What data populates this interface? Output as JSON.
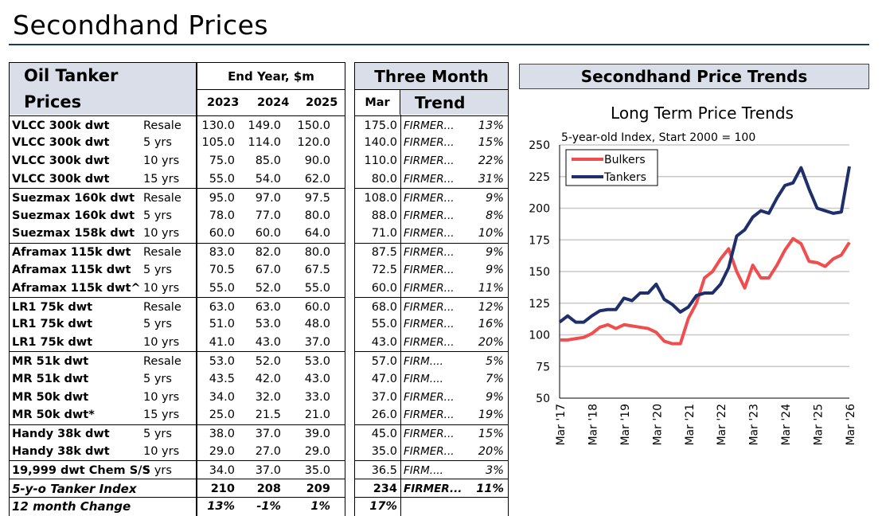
{
  "page_title": "Secondhand Prices",
  "table": {
    "header": {
      "col1_line1": "Oil Tanker",
      "col1_line2": "Prices",
      "end_year": "End Year, $m",
      "years": [
        "2023",
        "2024",
        "2025"
      ],
      "three_month": "Three Month",
      "mar": "Mar",
      "trend": "Trend"
    },
    "rows": [
      {
        "name": "VLCC 300k dwt",
        "age": "Resale",
        "y2023": "130.0",
        "y2024": "149.0",
        "y2025": "150.0",
        "mar": "175.0",
        "trend": "FIRMER...",
        "pct": "13%",
        "sep": true
      },
      {
        "name": "VLCC 300k dwt",
        "age": "5 yrs",
        "y2023": "105.0",
        "y2024": "114.0",
        "y2025": "120.0",
        "mar": "140.0",
        "trend": "FIRMER...",
        "pct": "15%"
      },
      {
        "name": "VLCC 300k dwt",
        "age": "10 yrs",
        "y2023": "75.0",
        "y2024": "85.0",
        "y2025": "90.0",
        "mar": "110.0",
        "trend": "FIRMER...",
        "pct": "22%"
      },
      {
        "name": "VLCC 300k dwt",
        "age": "15 yrs",
        "y2023": "55.0",
        "y2024": "54.0",
        "y2025": "62.0",
        "mar": "80.0",
        "trend": "FIRMER...",
        "pct": "31%"
      },
      {
        "name": "Suezmax 160k dwt",
        "age": "Resale",
        "y2023": "95.0",
        "y2024": "97.0",
        "y2025": "97.5",
        "mar": "108.0",
        "trend": "FIRMER...",
        "pct": "9%",
        "sep": true
      },
      {
        "name": "Suezmax 160k dwt",
        "age": "5 yrs",
        "y2023": "78.0",
        "y2024": "77.0",
        "y2025": "80.0",
        "mar": "88.0",
        "trend": "FIRMER...",
        "pct": "8%"
      },
      {
        "name": "Suezmax 158k dwt",
        "age": "10 yrs",
        "y2023": "60.0",
        "y2024": "60.0",
        "y2025": "64.0",
        "mar": "71.0",
        "trend": "FIRMER...",
        "pct": "10%"
      },
      {
        "name": "Aframax 115k dwt",
        "age": "Resale",
        "y2023": "83.0",
        "y2024": "82.0",
        "y2025": "80.0",
        "mar": "87.5",
        "trend": "FIRMER...",
        "pct": "9%",
        "sep": true
      },
      {
        "name": "Aframax 115k dwt",
        "age": "5 yrs",
        "y2023": "70.5",
        "y2024": "67.0",
        "y2025": "67.5",
        "mar": "72.5",
        "trend": "FIRMER...",
        "pct": "9%"
      },
      {
        "name": "Aframax 115k dwt^",
        "age": "10 yrs",
        "y2023": "55.0",
        "y2024": "52.0",
        "y2025": "55.0",
        "mar": "60.0",
        "trend": "FIRMER...",
        "pct": "11%"
      },
      {
        "name": "LR1 75k dwt",
        "age": "Resale",
        "y2023": "63.0",
        "y2024": "63.0",
        "y2025": "60.0",
        "mar": "68.0",
        "trend": "FIRMER...",
        "pct": "12%",
        "sep": true
      },
      {
        "name": "LR1 75k dwt",
        "age": "5 yrs",
        "y2023": "51.0",
        "y2024": "53.0",
        "y2025": "48.0",
        "mar": "55.0",
        "trend": "FIRMER...",
        "pct": "16%"
      },
      {
        "name": "LR1 75k dwt",
        "age": "10 yrs",
        "y2023": "41.0",
        "y2024": "43.0",
        "y2025": "37.0",
        "mar": "43.0",
        "trend": "FIRMER...",
        "pct": "20%"
      },
      {
        "name": "MR 51k dwt",
        "age": "Resale",
        "y2023": "53.0",
        "y2024": "52.0",
        "y2025": "53.0",
        "mar": "57.0",
        "trend": "FIRM....",
        "pct": "5%",
        "sep": true
      },
      {
        "name": "MR 51k dwt",
        "age": "5 yrs",
        "y2023": "43.5",
        "y2024": "42.0",
        "y2025": "43.0",
        "mar": "47.0",
        "trend": "FIRM....",
        "pct": "7%"
      },
      {
        "name": "MR 50k dwt",
        "age": "10 yrs",
        "y2023": "34.0",
        "y2024": "32.0",
        "y2025": "33.0",
        "mar": "37.0",
        "trend": "FIRMER...",
        "pct": "9%"
      },
      {
        "name": "MR 50k dwt*",
        "age": "15 yrs",
        "y2023": "25.0",
        "y2024": "21.5",
        "y2025": "21.0",
        "mar": "26.0",
        "trend": "FIRMER...",
        "pct": "19%"
      },
      {
        "name": "Handy 38k dwt",
        "age": "5 yrs",
        "y2023": "38.0",
        "y2024": "37.0",
        "y2025": "39.0",
        "mar": "45.0",
        "trend": "FIRMER...",
        "pct": "15%",
        "sep": true
      },
      {
        "name": "Handy 38k dwt",
        "age": "10 yrs",
        "y2023": "29.0",
        "y2024": "27.0",
        "y2025": "29.0",
        "mar": "35.0",
        "trend": "FIRMER...",
        "pct": "20%"
      },
      {
        "name": "19,999 dwt Chem S/S",
        "age": "5 yrs",
        "y2023": "34.0",
        "y2024": "37.0",
        "y2025": "35.0",
        "mar": "36.5",
        "trend": "FIRM....",
        "pct": "3%",
        "sep": true
      },
      {
        "name": "5-y-o Tanker Index",
        "age": "",
        "y2023": "210",
        "y2024": "208",
        "y2025": "209",
        "mar": "234",
        "trend": "FIRMER...",
        "pct": "11%",
        "sep": true,
        "style": "index"
      },
      {
        "name": "12 month Change",
        "age": "",
        "y2023": "13%",
        "y2024": "-1%",
        "y2025": "1%",
        "mar": "17%",
        "trend": "",
        "pct": "",
        "sep": true,
        "style": "change"
      }
    ]
  },
  "chart_panel": {
    "header": "Secondhand Price Trends"
  },
  "chart_data": {
    "type": "line",
    "title": "Long Term Price Trends",
    "subtitle": "5-year-old Index, Start 2000 = 100",
    "xlabel": "",
    "ylabel": "",
    "ylim": [
      50,
      250
    ],
    "yticks": [
      "50",
      "75",
      "100",
      "125",
      "150",
      "175",
      "200",
      "225",
      "250"
    ],
    "xticks": [
      "Mar '17",
      "Mar '18",
      "Mar '19",
      "Mar '20",
      "Mar '21",
      "Mar '22",
      "Mar '23",
      "Mar '24",
      "Mar '25",
      "Mar '26"
    ],
    "x_quarters_from_mar17": [
      0,
      1,
      2,
      3,
      4,
      5,
      6,
      7,
      8,
      9,
      10,
      11,
      12,
      13,
      14,
      15,
      16,
      17,
      18,
      19,
      20,
      21,
      22,
      23,
      24,
      25,
      26,
      27,
      28,
      29,
      30,
      31,
      32,
      33,
      34,
      35,
      36
    ],
    "legend": "top-left",
    "grid": true,
    "series": [
      {
        "name": "Bulkers",
        "color": "#f04e4e",
        "values": [
          96,
          96,
          97,
          98,
          101,
          106,
          108,
          105,
          108,
          107,
          106,
          105,
          102,
          95,
          93,
          93,
          113,
          125,
          145,
          150,
          160,
          168,
          150,
          137,
          155,
          145,
          145,
          155,
          167,
          176,
          172,
          158,
          157,
          154,
          160,
          163,
          173
        ]
      },
      {
        "name": "Tankers",
        "color": "#1f2f6b",
        "values": [
          110,
          115,
          110,
          110,
          115,
          119,
          120,
          120,
          129,
          127,
          133,
          133,
          140,
          128,
          124,
          118,
          122,
          131,
          133,
          133,
          140,
          153,
          178,
          183,
          193,
          198,
          196,
          208,
          218,
          220,
          232,
          215,
          200,
          198,
          196,
          197,
          233
        ]
      }
    ]
  }
}
